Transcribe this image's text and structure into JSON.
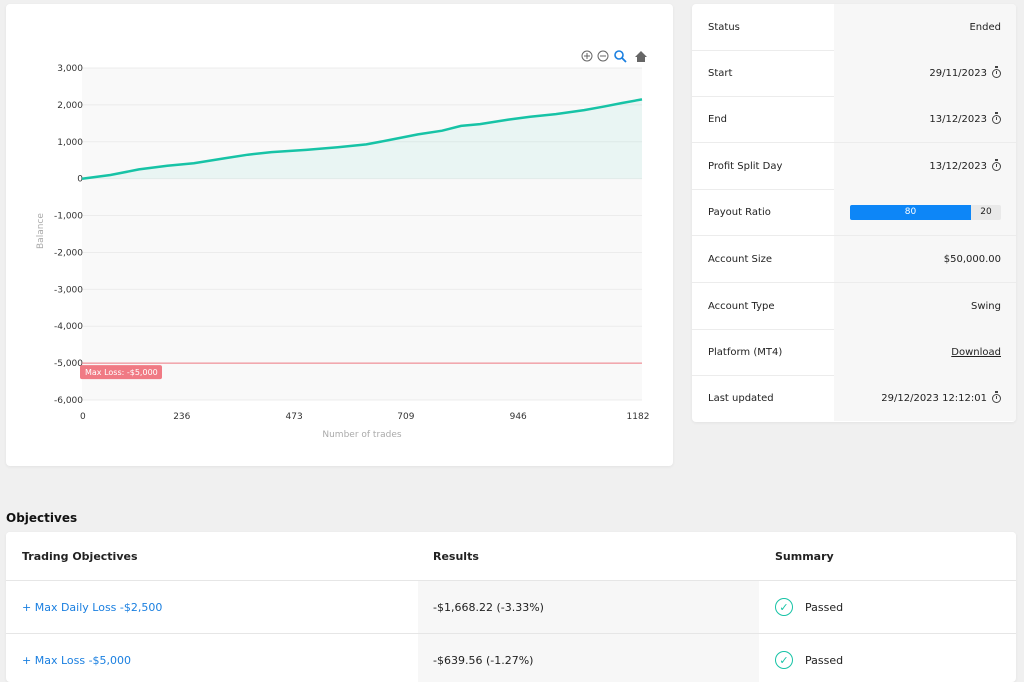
{
  "chart": {
    "y_axis_title": "Balance",
    "x_axis_title": "Number of trades",
    "y_ticks": [
      "3,000",
      "2,000",
      "1,000",
      "0",
      "-1,000",
      "-2,000",
      "-3,000",
      "-4,000",
      "-5,000",
      "-6,000"
    ],
    "x_ticks": [
      "0",
      "236",
      "473",
      "709",
      "946",
      "1182"
    ],
    "max_loss_label": "Max Loss: -$5,000",
    "line_color": "#17c3a6",
    "max_loss_color": "#f07a84",
    "toolbar_icons": [
      "zoom-in-icon",
      "zoom-out-icon",
      "zoom-select-icon",
      "reset-home-icon"
    ]
  },
  "chart_data": {
    "type": "line",
    "title": "",
    "xlabel": "Number of trades",
    "ylabel": "Balance",
    "xlim": [
      0,
      1182
    ],
    "ylim": [
      -6000,
      3000
    ],
    "x": [
      0,
      60,
      120,
      180,
      236,
      300,
      350,
      400,
      473,
      540,
      600,
      650,
      709,
      760,
      800,
      840,
      900,
      946,
      1000,
      1060,
      1100,
      1140,
      1182
    ],
    "values": [
      0,
      100,
      250,
      350,
      420,
      550,
      650,
      720,
      780,
      850,
      930,
      1050,
      1200,
      1300,
      1430,
      1480,
      1600,
      1680,
      1750,
      1860,
      1950,
      2050,
      2150
    ],
    "annotations": [
      {
        "label": "Max Loss: -$5,000",
        "y": -5000
      }
    ]
  },
  "info": {
    "rows": [
      {
        "label": "Status",
        "value": "Ended"
      },
      {
        "label": "Start",
        "value": "29/11/2023"
      },
      {
        "label": "End",
        "value": "13/12/2023"
      },
      {
        "label": "Profit Split Day",
        "value": "13/12/2023"
      },
      {
        "label": "Payout Ratio",
        "trader": "80",
        "firm": "20"
      },
      {
        "label": "Account Size",
        "value": "$50,000.00"
      },
      {
        "label": "Account Type",
        "value": "Swing"
      },
      {
        "label": "Platform (MT4)",
        "value": "Download"
      },
      {
        "label": "Last updated",
        "value": "29/12/2023 12:12:01"
      }
    ]
  },
  "objectives": {
    "title": "Objectives",
    "headers": [
      "Trading Objectives",
      "Results",
      "Summary"
    ],
    "rows": [
      {
        "name": "+ Max Daily Loss -$2,500",
        "result": "-$1,668.22 (-3.33%)",
        "summary": "Passed"
      },
      {
        "name": "+ Max Loss -$5,000",
        "result": "-$639.56 (-1.27%)",
        "summary": "Passed"
      }
    ]
  }
}
